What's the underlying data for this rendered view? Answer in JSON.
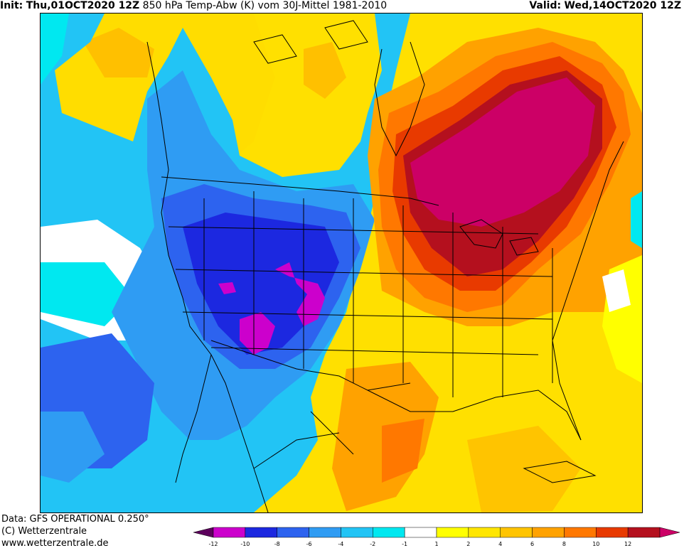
{
  "header": {
    "init_label": "Init:",
    "init_value": "Thu,01OCT2020 12Z",
    "title": "850 hPa Temp-Abw (K) vom 30J-Mittel 1981-2010",
    "valid_label": "Valid:",
    "valid_value": "Wed,14OCT2020 12Z"
  },
  "footer": {
    "data_line": "Data: GFS OPERATIONAL 0.250°",
    "copyright": "(C) Wetterzentrale",
    "website": "www.wetterzentrale.de"
  },
  "legend": {
    "bins": [
      {
        "color": "#5c005c"
      },
      {
        "color": "#cc00cc"
      },
      {
        "color": "#1c28e0"
      },
      {
        "color": "#2d63ef"
      },
      {
        "color": "#2f9cf3"
      },
      {
        "color": "#22c4f5"
      },
      {
        "color": "#00e8f0"
      },
      {
        "color": "#ffffff"
      },
      {
        "color": "#ffff00"
      },
      {
        "color": "#ffe600"
      },
      {
        "color": "#ffc400"
      },
      {
        "color": "#ffa200"
      },
      {
        "color": "#ff7800"
      },
      {
        "color": "#e83a00"
      },
      {
        "color": "#b4101e"
      },
      {
        "color": "#cc0066"
      }
    ],
    "ticks": [
      "-12",
      "-10",
      "-8",
      "-6",
      "-4",
      "-2",
      "-1",
      "1",
      "2",
      "4",
      "6",
      "8",
      "10",
      "12"
    ]
  },
  "map_colors": {
    "background_warm": "#ffe000",
    "strong_warm": "#cc0066",
    "strong_cold": "#cc00cc",
    "outline": "#000000"
  }
}
